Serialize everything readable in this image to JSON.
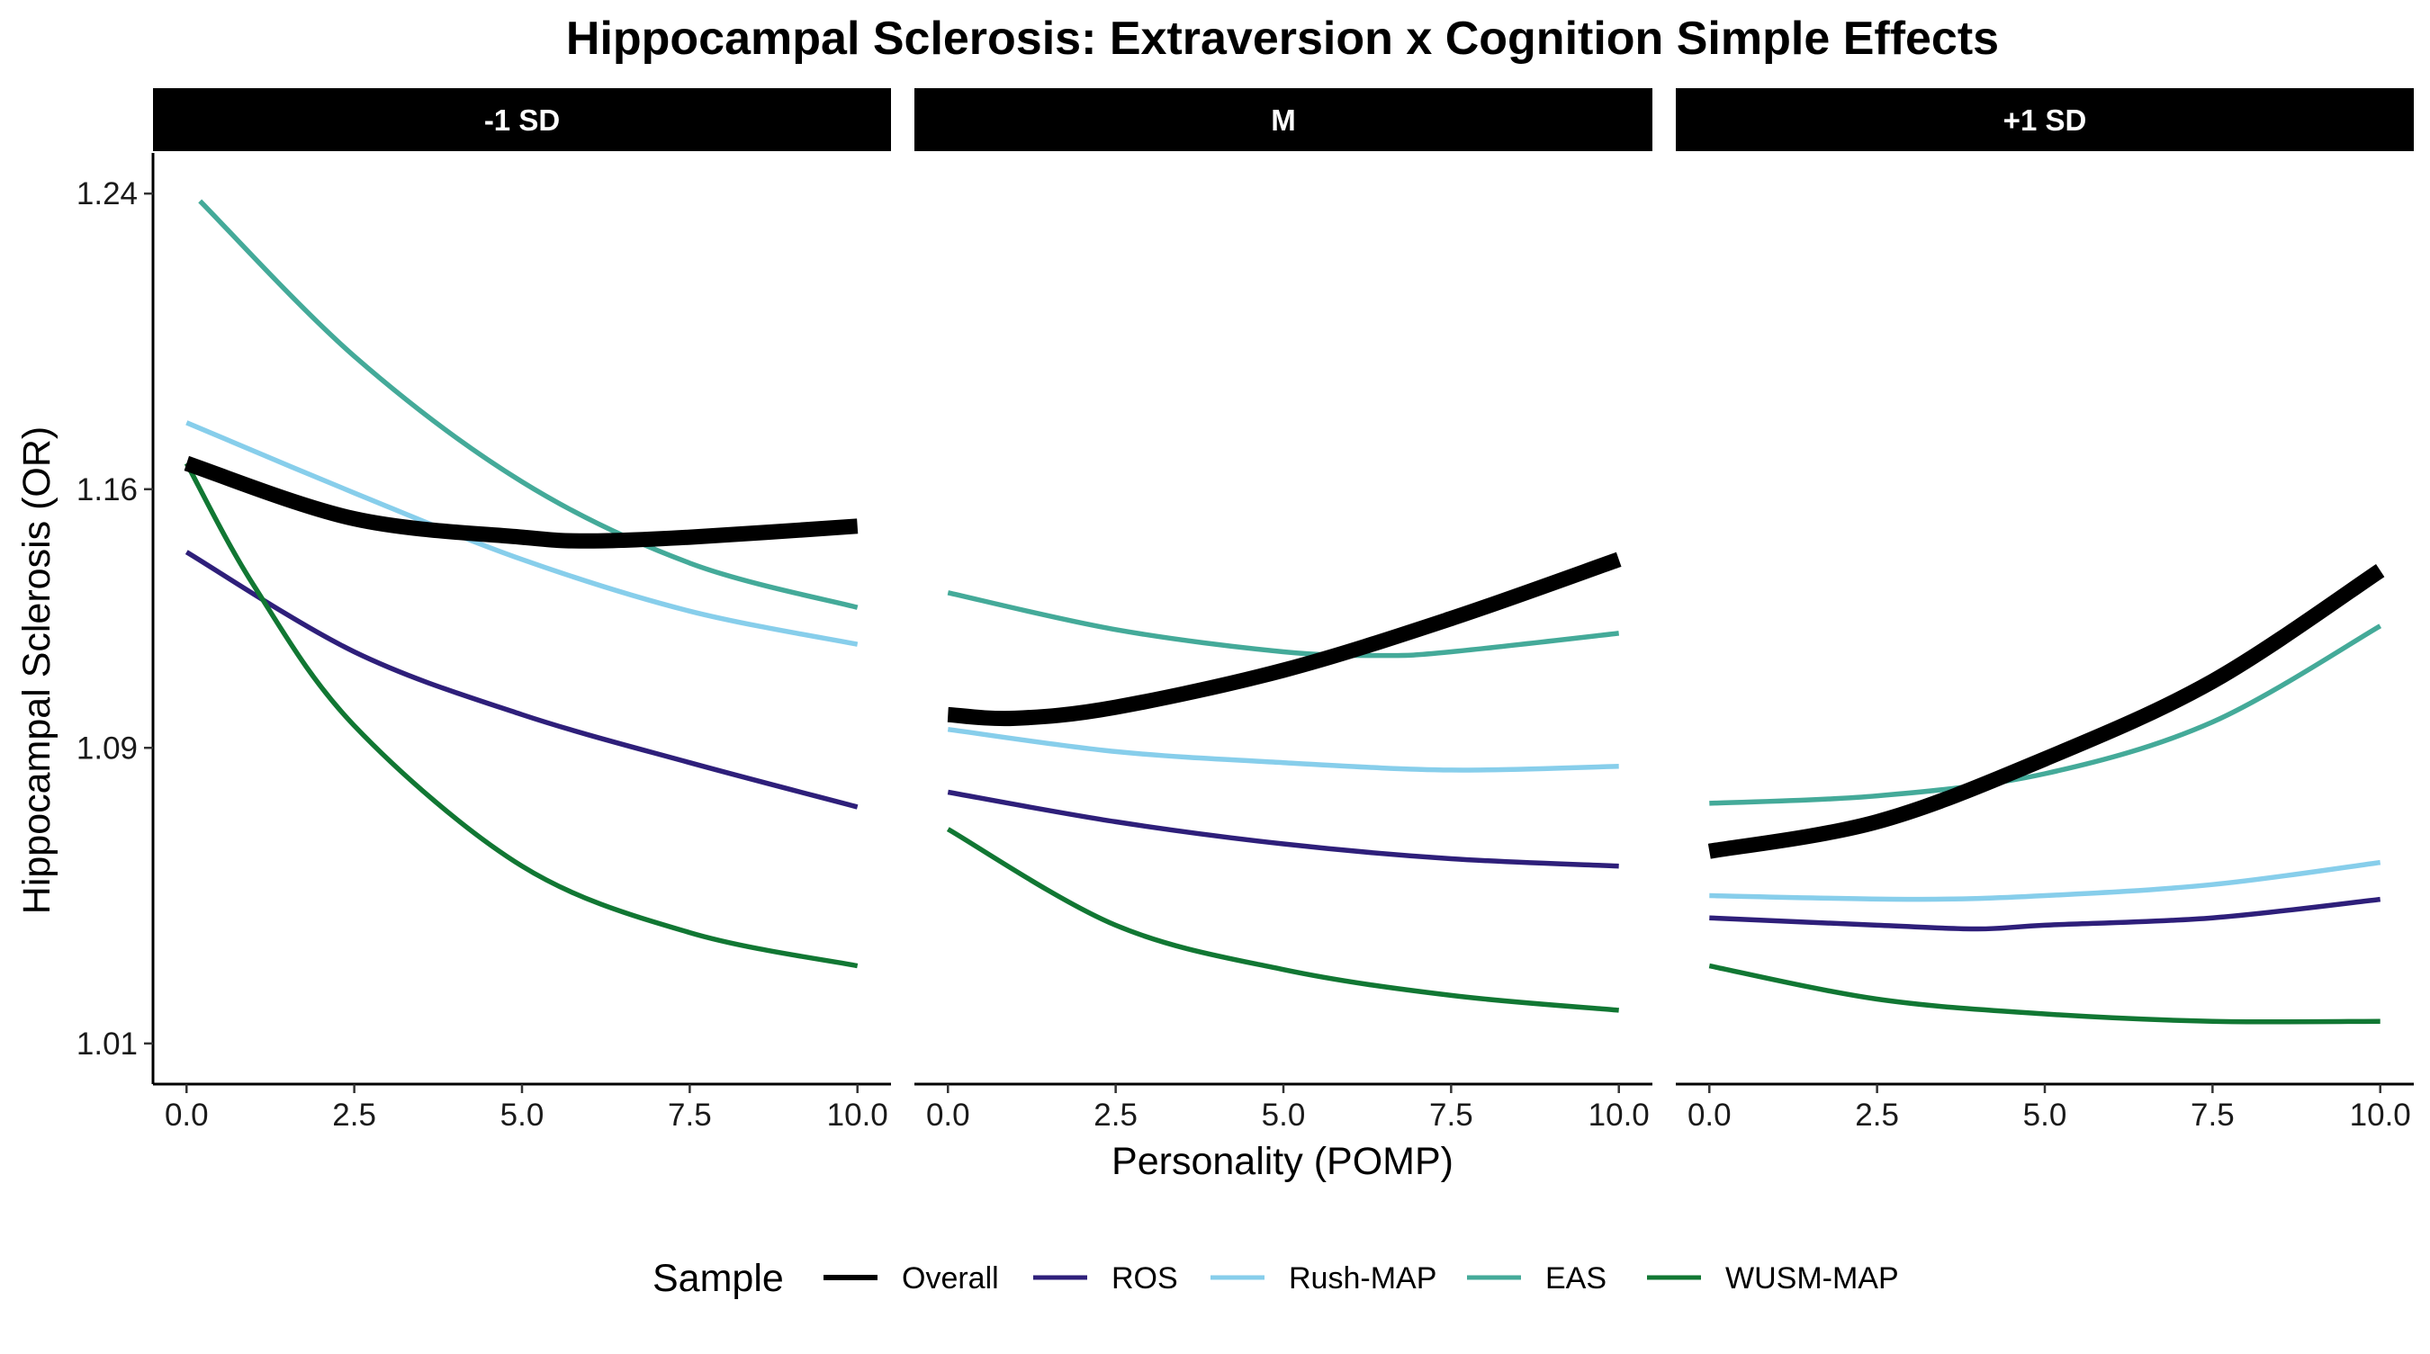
{
  "chart_data": {
    "type": "line",
    "title": "Hippocampal Sclerosis: Extraversion x Cognition Simple Effects",
    "xlabel": "Personality (POMP)",
    "ylabel": "Hippocampal Sclerosis (OR)",
    "xlim": [
      -0.5,
      10.5
    ],
    "ylim": [
      0.999,
      1.251
    ],
    "x_ticks": [
      0,
      2.5,
      5,
      7.5,
      10
    ],
    "x_tick_labels": [
      "0.0",
      "2.5",
      "5.0",
      "7.5",
      "10.0"
    ],
    "y_ticks": [
      1.01,
      1.09,
      1.16,
      1.24
    ],
    "y_tick_labels": [
      "1.01",
      "1.09",
      "1.16",
      "1.24"
    ],
    "grid": false,
    "legend": {
      "title": "Sample",
      "position": "bottom",
      "entries": [
        "Overall",
        "ROS",
        "Rush-MAP",
        "EAS",
        "WUSM-MAP"
      ]
    },
    "series_styles": [
      {
        "name": "Overall",
        "color": "#000000",
        "width": "thick"
      },
      {
        "name": "ROS",
        "color": "#2e1f7a",
        "width": "normal"
      },
      {
        "name": "Rush-MAP",
        "color": "#87ceeb",
        "width": "normal"
      },
      {
        "name": "EAS",
        "color": "#44aa99",
        "width": "normal"
      },
      {
        "name": "WUSM-MAP",
        "color": "#117733",
        "width": "normal"
      }
    ],
    "panels": [
      {
        "label": "-1 SD",
        "series": [
          {
            "name": "Overall",
            "x": [
              0,
              2.5,
              5,
              6,
              7.5,
              10
            ],
            "y": [
              1.167,
              1.152,
              1.147,
              1.146,
              1.147,
              1.15
            ]
          },
          {
            "name": "ROS",
            "x": [
              0,
              2.5,
              5,
              7.5,
              10
            ],
            "y": [
              1.143,
              1.116,
              1.099,
              1.086,
              1.074
            ]
          },
          {
            "name": "Rush-MAP",
            "x": [
              0,
              2.5,
              5,
              7.5,
              10
            ],
            "y": [
              1.178,
              1.159,
              1.141,
              1.127,
              1.118
            ]
          },
          {
            "name": "EAS",
            "x": [
              0.2,
              2.5,
              5,
              7.5,
              10
            ],
            "y": [
              1.238,
              1.196,
              1.162,
              1.14,
              1.128
            ]
          },
          {
            "name": "WUSM-MAP",
            "x": [
              0,
              1,
              2.5,
              5,
              7.5,
              10
            ],
            "y": [
              1.167,
              1.134,
              1.096,
              1.058,
              1.04,
              1.031
            ]
          }
        ]
      },
      {
        "label": "M",
        "series": [
          {
            "name": "Overall",
            "x": [
              0,
              1,
              2.5,
              5,
              7.5,
              10
            ],
            "y": [
              1.099,
              1.098,
              1.101,
              1.111,
              1.125,
              1.141
            ]
          },
          {
            "name": "ROS",
            "x": [
              0,
              2.5,
              5,
              7.5,
              10
            ],
            "y": [
              1.078,
              1.07,
              1.064,
              1.06,
              1.058
            ]
          },
          {
            "name": "Rush-MAP",
            "x": [
              0,
              2.5,
              5,
              7.5,
              10
            ],
            "y": [
              1.095,
              1.089,
              1.086,
              1.084,
              1.085
            ]
          },
          {
            "name": "EAS",
            "x": [
              0,
              2.5,
              5,
              6.5,
              7.5,
              10
            ],
            "y": [
              1.132,
              1.122,
              1.116,
              1.115,
              1.116,
              1.121
            ]
          },
          {
            "name": "WUSM-MAP",
            "x": [
              0,
              2.5,
              5,
              7.5,
              10
            ],
            "y": [
              1.068,
              1.042,
              1.03,
              1.023,
              1.019
            ]
          }
        ]
      },
      {
        "label": "+1 SD",
        "series": [
          {
            "name": "Overall",
            "x": [
              0,
              2.5,
              5,
              7.5,
              10
            ],
            "y": [
              1.062,
              1.07,
              1.087,
              1.108,
              1.138
            ]
          },
          {
            "name": "ROS",
            "x": [
              0,
              2.5,
              4,
              5,
              7.5,
              10
            ],
            "y": [
              1.044,
              1.042,
              1.041,
              1.042,
              1.044,
              1.049
            ]
          },
          {
            "name": "Rush-MAP",
            "x": [
              0,
              3,
              5,
              7.5,
              10
            ],
            "y": [
              1.05,
              1.049,
              1.05,
              1.053,
              1.059
            ]
          },
          {
            "name": "EAS",
            "x": [
              0,
              2.5,
              5,
              7.5,
              10
            ],
            "y": [
              1.075,
              1.077,
              1.083,
              1.097,
              1.123
            ]
          },
          {
            "name": "WUSM-MAP",
            "x": [
              0,
              2.5,
              5,
              7.5,
              10
            ],
            "y": [
              1.031,
              1.022,
              1.018,
              1.016,
              1.016
            ]
          }
        ]
      }
    ]
  }
}
